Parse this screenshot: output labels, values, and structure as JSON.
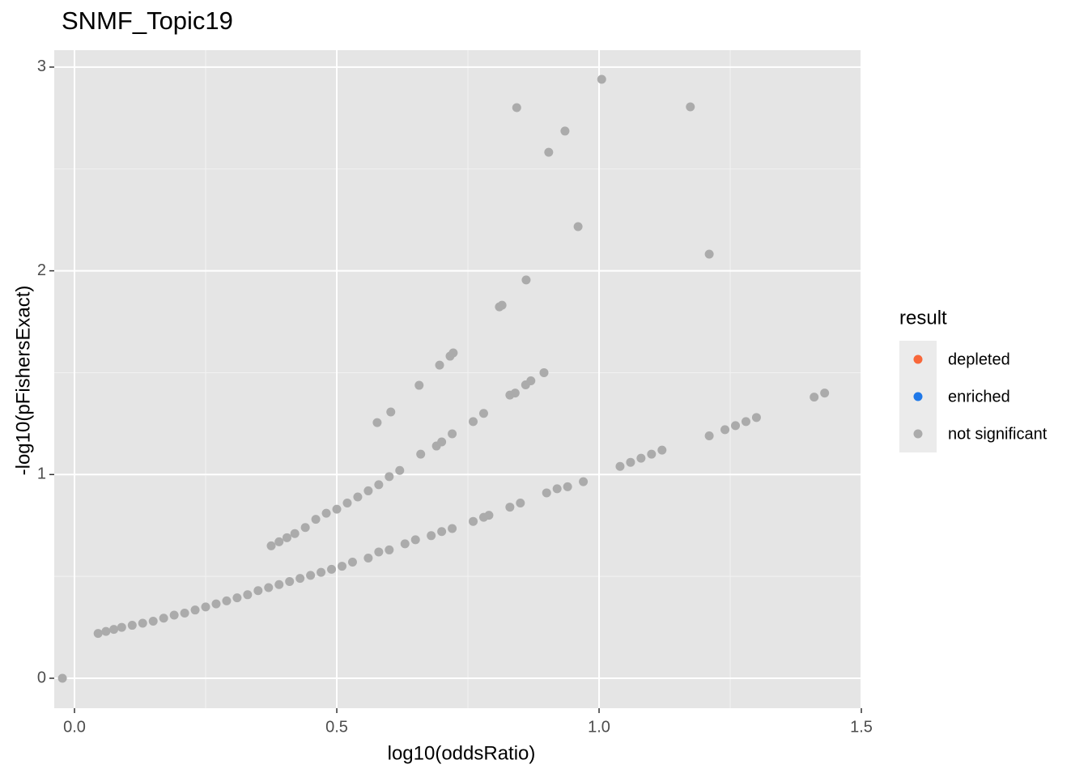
{
  "chart_data": {
    "type": "scatter",
    "title": "SNMF_Topic19",
    "x_label": "log10(oddsRatio)",
    "y_label": "-log10(pFishersExact)",
    "xlim": [
      -0.0386,
      1.5015
    ],
    "ylim": [
      -0.147,
      3.083
    ],
    "xticks": [
      {
        "value": 0,
        "label": "0.0"
      },
      0.5,
      {
        "value": 1,
        "label": "1.0"
      },
      1.5
    ],
    "yticks": [
      0,
      1,
      2,
      3
    ],
    "x_minor_grid": [
      0.25,
      0.75,
      1.25
    ],
    "y_minor_grid": [
      0.5,
      1.5,
      2.5
    ],
    "grid": true,
    "legend_title": "result",
    "legend_position": "right",
    "series": [
      {
        "name": "depleted",
        "color": "#f8673a",
        "x": [],
        "values": []
      },
      {
        "name": "enriched",
        "color": "#1f78e8",
        "x": [],
        "values": []
      },
      {
        "name": "not significant",
        "color": "#ababab",
        "x": [
          -0.023,
          0.045,
          0.06,
          0.075,
          0.09,
          0.11,
          0.13,
          0.15,
          0.17,
          0.19,
          0.21,
          0.23,
          0.25,
          0.27,
          0.29,
          0.31,
          0.33,
          0.35,
          0.37,
          0.39,
          0.41,
          0.43,
          0.45,
          0.47,
          0.49,
          0.51,
          0.53,
          0.56,
          0.58,
          0.6,
          0.63,
          0.65,
          0.68,
          0.7,
          0.72,
          0.76,
          0.78,
          0.79,
          0.83,
          0.85,
          0.9,
          0.92,
          0.94,
          0.97,
          1.04,
          1.06,
          1.08,
          1.1,
          1.12,
          1.21,
          1.24,
          1.26,
          1.28,
          1.3,
          1.41,
          1.43,
          0.375,
          0.39,
          0.405,
          0.42,
          0.44,
          0.46,
          0.48,
          0.5,
          0.52,
          0.54,
          0.56,
          0.58,
          0.6,
          0.62,
          0.66,
          0.69,
          0.7,
          0.72,
          0.76,
          0.78,
          0.83,
          0.84,
          0.86,
          0.87,
          0.895,
          0.577,
          0.603,
          0.657,
          0.696,
          0.716,
          0.722,
          0.81,
          0.815,
          0.861,
          0.843,
          0.904,
          0.935,
          0.96,
          1.005,
          1.174,
          1.21
        ],
        "values": [
          0,
          0.22,
          0.23,
          0.24,
          0.25,
          0.26,
          0.27,
          0.28,
          0.295,
          0.31,
          0.32,
          0.335,
          0.35,
          0.365,
          0.38,
          0.395,
          0.41,
          0.43,
          0.445,
          0.46,
          0.475,
          0.49,
          0.505,
          0.52,
          0.535,
          0.55,
          0.57,
          0.59,
          0.62,
          0.63,
          0.66,
          0.68,
          0.7,
          0.72,
          0.735,
          0.77,
          0.79,
          0.8,
          0.84,
          0.86,
          0.91,
          0.93,
          0.94,
          0.965,
          1.04,
          1.06,
          1.08,
          1.1,
          1.12,
          1.19,
          1.22,
          1.24,
          1.26,
          1.28,
          1.38,
          1.4,
          0.65,
          0.67,
          0.69,
          0.71,
          0.74,
          0.78,
          0.81,
          0.83,
          0.86,
          0.89,
          0.92,
          0.95,
          0.99,
          1.02,
          1.1,
          1.14,
          1.16,
          1.2,
          1.26,
          1.3,
          1.39,
          1.4,
          1.44,
          1.46,
          1.5,
          1.255,
          1.307,
          1.438,
          1.537,
          1.581,
          1.597,
          1.823,
          1.831,
          1.955,
          2.801,
          2.582,
          2.686,
          2.217,
          2.94,
          2.805,
          2.082
        ]
      }
    ]
  }
}
